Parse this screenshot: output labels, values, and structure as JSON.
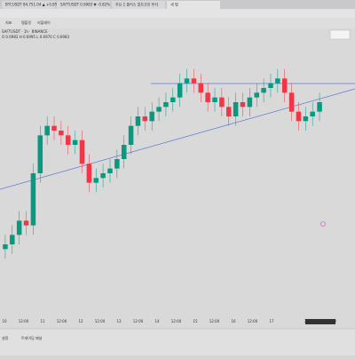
{
  "browser": {
    "tabs": [
      "BTCUSDT 84,751.04 ▲ +0.8%",
      "SAFTUSDT 0.6983 ▼ -0.82%",
      "주요 1 플러스 알트코인 투자",
      "새 탭"
    ]
  },
  "toolbar": {
    "items": [
      "지표",
      "템플릿",
      "리플레이"
    ],
    "symbol": "SAFTUSDT · 1h · BINANCE",
    "ohlc": "O 0.6983 H 0.6995 L 0.6970 C 0.6983"
  },
  "chart_data": {
    "type": "candlestick",
    "ylim": [
      30,
      90
    ],
    "time_axis": [
      "10",
      "12:00",
      "11",
      "12:00",
      "12",
      "12:00",
      "13",
      "12:00",
      "14",
      "12:00",
      "15",
      "12:00",
      "16",
      "12:00",
      "17"
    ],
    "cursor_label": "2025-04-17 20:00",
    "up_color": "#089981",
    "down_color": "#f23645",
    "open": [
      44,
      45,
      47,
      50,
      49,
      60,
      68,
      70,
      69,
      68,
      66,
      67,
      62,
      58,
      59,
      60,
      61,
      63,
      66,
      70,
      72,
      71,
      73,
      74,
      75,
      76,
      79,
      80,
      79,
      77,
      75,
      76,
      74,
      72,
      75,
      74,
      76,
      77,
      78,
      79,
      80,
      77,
      73,
      71,
      72,
      73
    ],
    "high": [
      47,
      49,
      52,
      52,
      62,
      70,
      72,
      72,
      71,
      70,
      69,
      69,
      64,
      61,
      62,
      63,
      65,
      68,
      72,
      74,
      74,
      75,
      76,
      77,
      78,
      81,
      82,
      82,
      81,
      79,
      78,
      78,
      76,
      77,
      77,
      78,
      79,
      80,
      81,
      82,
      82,
      79,
      75,
      74,
      75,
      77
    ],
    "low": [
      42,
      43,
      45,
      47,
      47,
      58,
      66,
      67,
      66,
      64,
      64,
      60,
      56,
      56,
      57,
      58,
      59,
      61,
      64,
      68,
      69,
      69,
      71,
      72,
      73,
      74,
      77,
      77,
      75,
      73,
      73,
      72,
      70,
      70,
      72,
      72,
      74,
      75,
      76,
      77,
      75,
      71,
      69,
      69,
      70,
      71
    ],
    "close": [
      45,
      47,
      50,
      49,
      60,
      68,
      70,
      69,
      68,
      66,
      67,
      62,
      58,
      59,
      60,
      61,
      63,
      66,
      70,
      72,
      71,
      73,
      74,
      75,
      76,
      79,
      80,
      79,
      77,
      75,
      76,
      74,
      72,
      75,
      74,
      76,
      77,
      78,
      79,
      80,
      77,
      73,
      71,
      72,
      73,
      75
    ]
  },
  "bottom": {
    "items": [
      "설정",
      "트레이딩 패널"
    ]
  }
}
